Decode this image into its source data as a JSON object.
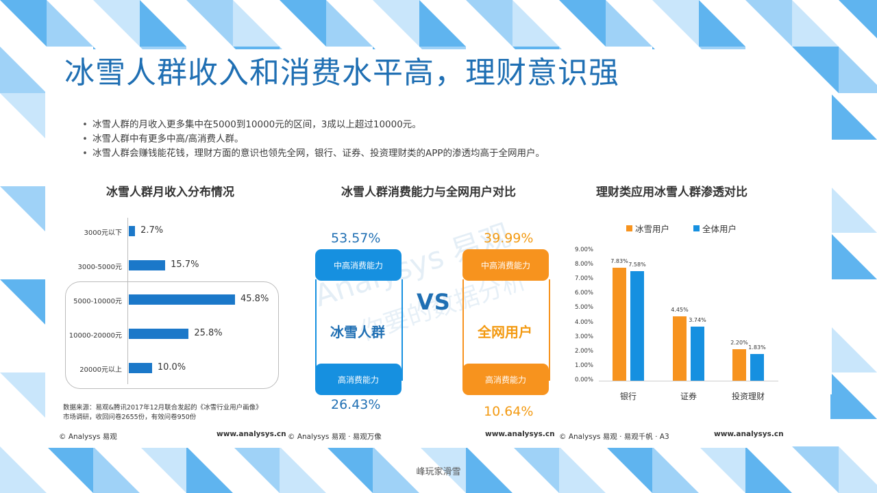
{
  "title": "冰雪人群收入和消费水平高，理财意识强",
  "bullets": [
    "冰雪人群的月收入更多集中在5000到10000元的区间，3成以上超过10000元。",
    "冰雪人群中有更多中高/高消费人群。",
    "冰雪人群会赚钱能花钱，理财方面的意识也领先全网，银行、证券、投资理财类的APP的渗透均高于全网用户。"
  ],
  "colors": {
    "title": "#1f6fb3",
    "blue": "#1690e0",
    "orange": "#f7931e",
    "bar": "#1b78c9"
  },
  "panel1": {
    "title": "冰雪人群月收入分布情况",
    "source_line1": "数据来源：易观&腾讯2017年12月联合发起的《冰雪行业用户画像》",
    "source_line2": "市场调研，收回问卷2655份，有效问卷950份",
    "footer_left": "© Analysys 易观",
    "footer_right": "www.analysys.cn"
  },
  "panel2": {
    "title": "冰雪人群消费能力与全网用户对比",
    "left": {
      "name": "冰雪人群",
      "top_label": "中高消费能力",
      "top_value": "53.57%",
      "bottom_label": "高消费能力",
      "bottom_value": "26.43%"
    },
    "right": {
      "name": "全网用户",
      "top_label": "中高消费能力",
      "top_value": "39.99%",
      "bottom_label": "高消费能力",
      "bottom_value": "10.64%"
    },
    "vs": "VS",
    "watermark1": "Analysys 易观",
    "watermark2": "你要的数据分析",
    "footer_left": "© Analysys 易观 · 易观万像",
    "footer_right": "www.analysys.cn"
  },
  "panel3": {
    "title": "理财类应用冰雪人群渗透对比",
    "footer_left": "© Analysys 易观 · 易观千帆 · A3",
    "footer_right": "www.analysys.cn"
  },
  "bottom_caption": "峰玩家滑雪",
  "chart_data": [
    {
      "type": "bar",
      "orientation": "horizontal",
      "title": "冰雪人群月收入分布情况",
      "categories": [
        "3000元以下",
        "3000-5000元",
        "5000-10000元",
        "10000-20000元",
        "20000元以上"
      ],
      "values": [
        2.7,
        15.7,
        45.8,
        25.8,
        10.0
      ],
      "value_labels": [
        "2.7%",
        "15.7%",
        "45.8%",
        "25.8%",
        "10.0%"
      ],
      "highlighted_categories": [
        "5000-10000元",
        "10000-20000元",
        "20000元以上"
      ],
      "xlim": [
        0,
        50
      ]
    },
    {
      "type": "bar",
      "title": "理财类应用冰雪人群渗透对比",
      "categories": [
        "银行",
        "证券",
        "投资理财"
      ],
      "series": [
        {
          "name": "冰雪用户",
          "color": "#f7931e",
          "values": [
            7.83,
            4.45,
            2.2
          ],
          "labels": [
            "7.83%",
            "4.45%",
            "2.20%"
          ]
        },
        {
          "name": "全体用户",
          "color": "#1690e0",
          "values": [
            7.58,
            3.74,
            1.83
          ],
          "labels": [
            "7.58%",
            "3.74%",
            "1.83%"
          ]
        }
      ],
      "ylim": [
        0,
        9
      ],
      "yticks": [
        "0.00%",
        "1.00%",
        "2.00%",
        "3.00%",
        "4.00%",
        "5.00%",
        "6.00%",
        "7.00%",
        "8.00%",
        "9.00%"
      ],
      "legend": "top"
    }
  ]
}
